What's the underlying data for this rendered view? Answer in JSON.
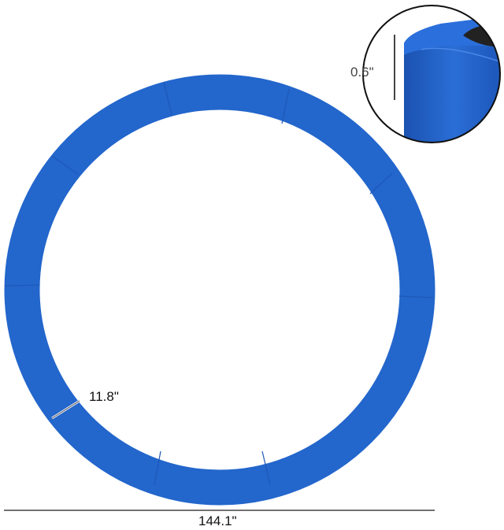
{
  "dimensions": {
    "thickness": "0.6\"",
    "width": "11.8\"",
    "diameter": "144.1\""
  },
  "colors": {
    "pad": "#2366cc",
    "pad_dark": "#1d56b4",
    "net": "#222222"
  },
  "icons": {
    "product": "trampoline-safety-pad"
  }
}
